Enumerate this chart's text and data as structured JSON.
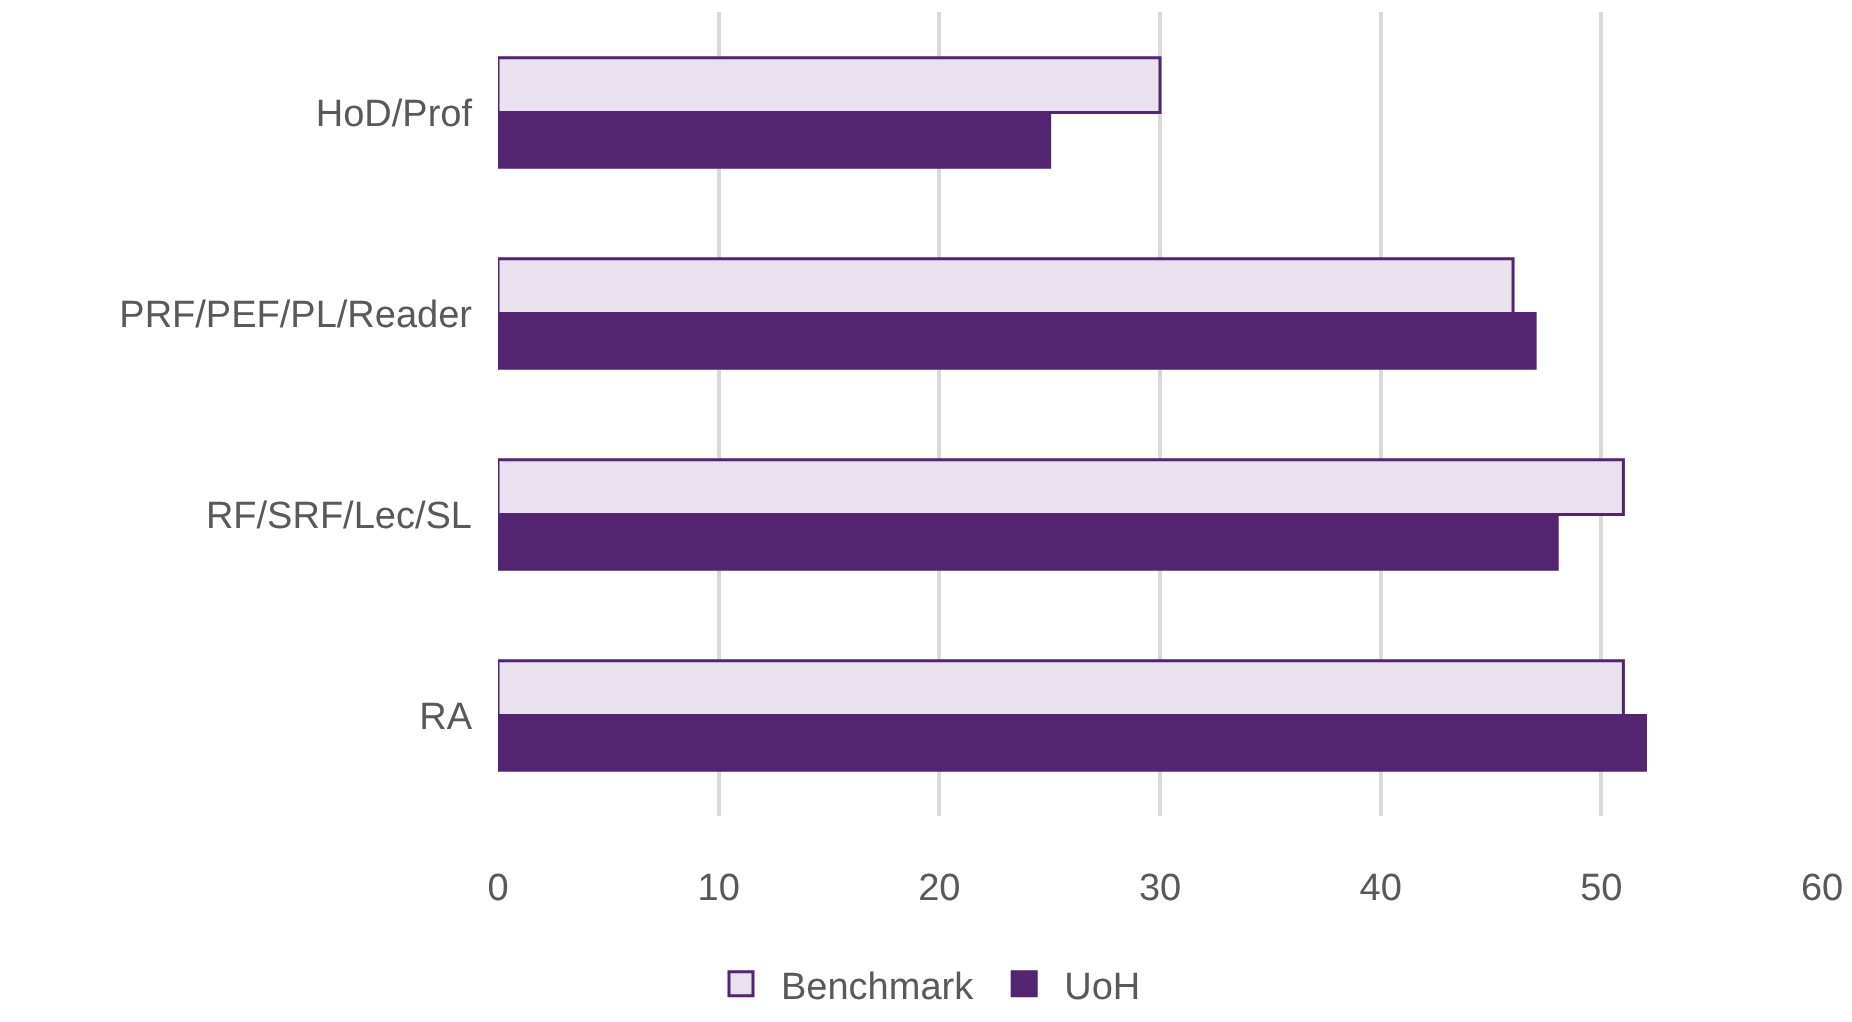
{
  "chart_data": {
    "type": "bar",
    "orientation": "horizontal",
    "categories": [
      "HoD/Prof",
      "PRF/PEF/PL/Reader",
      "RF/SRF/Lec/SL",
      "RA"
    ],
    "series": [
      {
        "name": "Benchmark",
        "color": "#e9e2ee",
        "values": [
          30,
          46,
          51,
          51
        ]
      },
      {
        "name": "UoH",
        "color": "#532470",
        "values": [
          25,
          47,
          48,
          52
        ]
      }
    ],
    "xlim": [
      0,
      60
    ],
    "xticks": [
      0,
      10,
      20,
      30,
      40,
      50,
      60
    ],
    "grid": "x",
    "legend": "bottom"
  }
}
